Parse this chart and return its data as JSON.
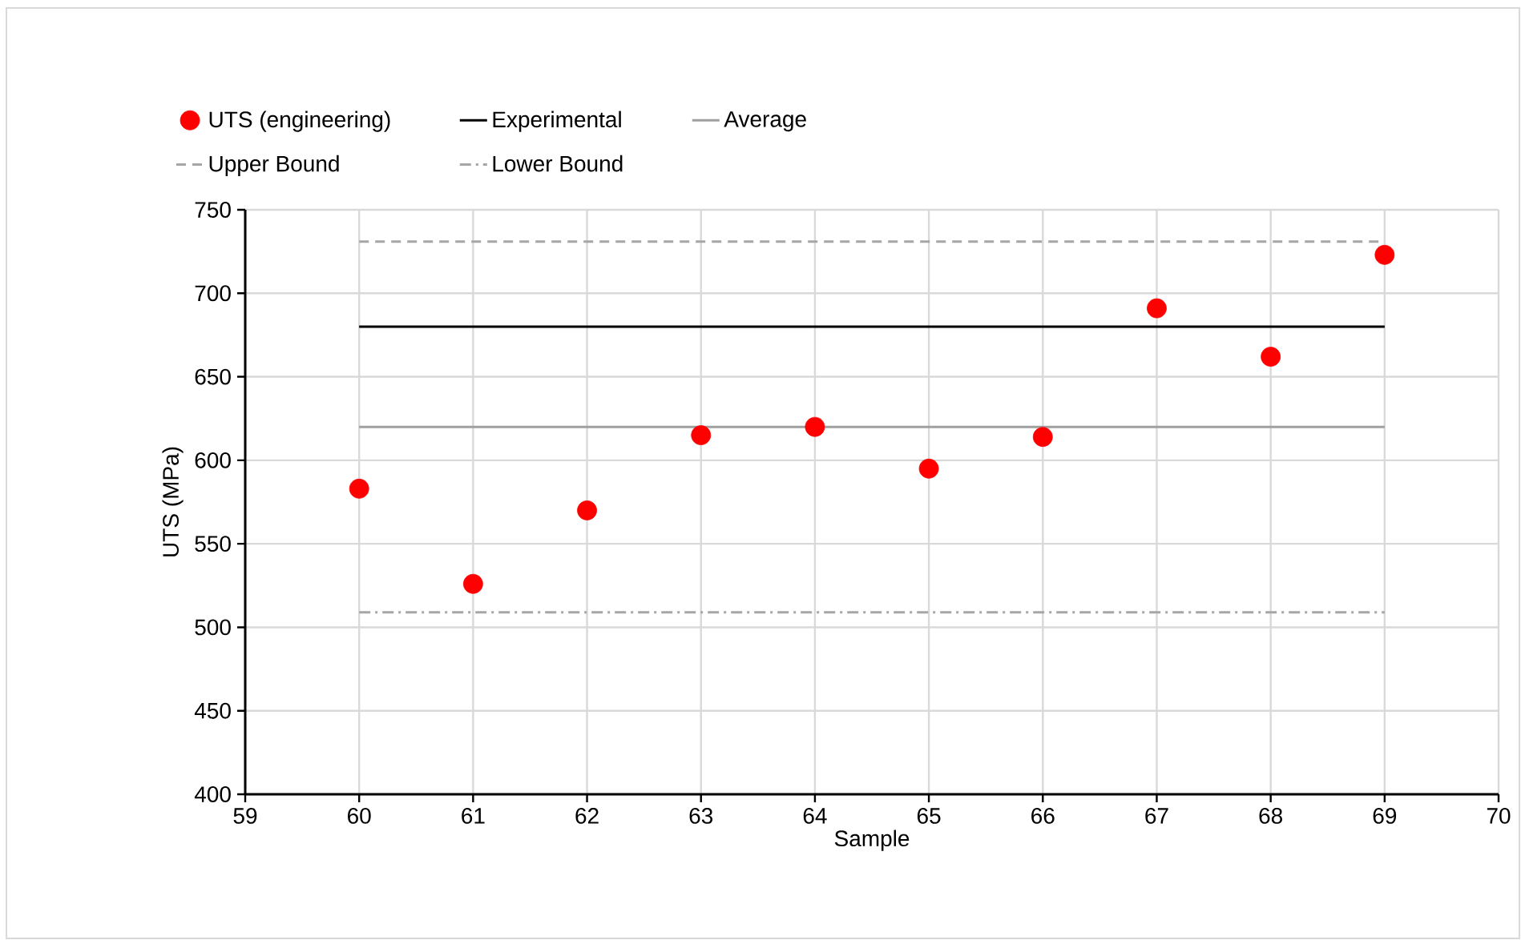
{
  "chart_data": {
    "type": "scatter",
    "xlabel": "Sample",
    "ylabel": "UTS (MPa)",
    "xlim": [
      59,
      70
    ],
    "xticks": [
      59,
      60,
      61,
      62,
      63,
      64,
      65,
      66,
      67,
      68,
      69,
      70
    ],
    "ylim": [
      400,
      750
    ],
    "yticks": [
      400,
      450,
      500,
      550,
      600,
      650,
      700,
      750
    ],
    "grid": true,
    "legend": "top",
    "marker": "circle",
    "series": [
      {
        "name": "UTS (engineering)",
        "color": "#ff0000",
        "x": [
          60,
          61,
          62,
          63,
          64,
          65,
          66,
          67,
          68,
          69
        ],
        "values": [
          583,
          526,
          570,
          615,
          620,
          595,
          614,
          691,
          662,
          723
        ]
      },
      {
        "name": "Experimental",
        "type": "line",
        "marker": "none",
        "line_style": "solid",
        "color": "#000000",
        "x": [
          60,
          69
        ],
        "values": [
          680,
          680
        ]
      },
      {
        "name": "Average",
        "type": "line",
        "marker": "none",
        "line_style": "solid",
        "color": "#a0a0a0",
        "x": [
          60,
          69
        ],
        "values": [
          620,
          620
        ]
      },
      {
        "name": "Upper Bound",
        "type": "line",
        "marker": "none",
        "line_style": "dashed",
        "color": "#a6a6a6",
        "x": [
          60,
          69
        ],
        "values": [
          731,
          731
        ]
      },
      {
        "name": "Lower Bound",
        "type": "line",
        "marker": "none",
        "line_style": "dashdot",
        "color": "#a6a6a6",
        "x": [
          60,
          69
        ],
        "values": [
          509,
          509
        ]
      }
    ]
  }
}
